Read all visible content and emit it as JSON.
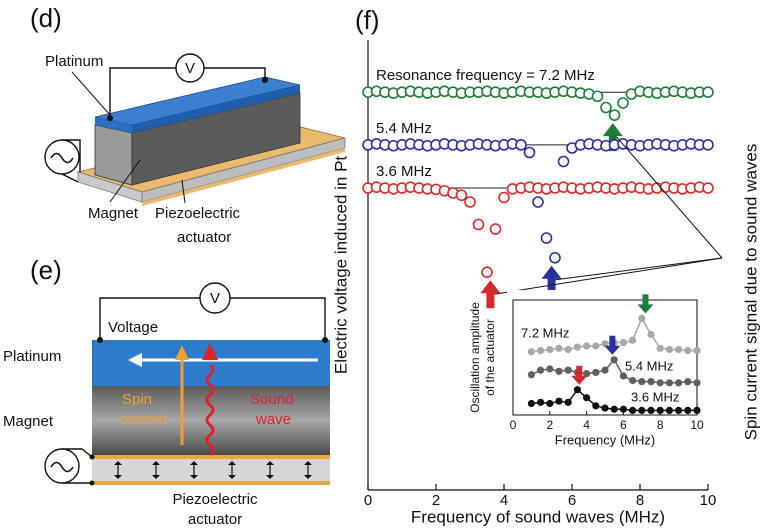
{
  "diagrams": {
    "d": {
      "label": "(d)",
      "voltmeter": "V",
      "platinum": "Platinum",
      "magnet": "Magnet",
      "actuator": [
        "Piezoelectric",
        "actuator"
      ]
    },
    "e": {
      "label": "(e)",
      "voltmeter": "V",
      "voltage": "Voltage",
      "platinum": "Platinum",
      "magnet": "Magnet",
      "spin_current": [
        "Spin",
        "current"
      ],
      "sound_wave": [
        "Sound",
        "wave"
      ],
      "actuator": [
        "Piezoelectric",
        "actuator"
      ]
    }
  },
  "chart_data": [
    {
      "type": "scatter",
      "panel_label": "(f)",
      "xlabel": "Frequency of sound waves (MHz)",
      "ylabel": "Electric voltage induced in Pt",
      "annotation": "Spin current signal due to sound waves",
      "x": [
        0,
        0.25,
        0.5,
        0.75,
        1,
        1.25,
        1.5,
        1.75,
        2,
        2.25,
        2.5,
        2.75,
        3,
        3.25,
        3.5,
        3.75,
        4,
        4.25,
        4.5,
        4.75,
        5,
        5.25,
        5.5,
        5.75,
        6,
        6.25,
        6.5,
        6.75,
        7,
        7.25,
        7.5,
        7.75,
        8,
        8.25,
        8.5,
        8.75,
        9,
        9.25,
        9.5,
        9.75,
        10
      ],
      "series": [
        {
          "name": "Resonance frequency = 7.2 MHz",
          "color": "#1e7b3c",
          "baseline": 8.84,
          "resonance": 7.2,
          "values": [
            8.84,
            8.86,
            8.84,
            8.82,
            8.84,
            8.86,
            8.84,
            8.82,
            8.84,
            8.86,
            8.84,
            8.82,
            8.84,
            8.84,
            8.86,
            8.84,
            8.82,
            8.84,
            8.86,
            8.84,
            8.84,
            8.82,
            8.84,
            8.86,
            8.84,
            8.82,
            8.8,
            8.75,
            8.5,
            8.33,
            8.6,
            8.8,
            8.86,
            8.84,
            8.82,
            8.84,
            8.86,
            8.84,
            8.82,
            8.84,
            8.84
          ]
        },
        {
          "name": "5.4 MHz",
          "color": "#2b2f9e",
          "baseline": 7.67,
          "resonance": 5.4,
          "values": [
            7.67,
            7.69,
            7.67,
            7.65,
            7.67,
            7.69,
            7.67,
            7.65,
            7.67,
            7.69,
            7.67,
            7.65,
            7.67,
            7.69,
            7.67,
            7.65,
            7.67,
            7.69,
            7.67,
            7.5,
            6.4,
            5.6,
            5.16,
            7.3,
            7.6,
            7.67,
            7.69,
            7.67,
            7.65,
            7.67,
            7.69,
            7.67,
            7.65,
            7.67,
            7.69,
            7.67,
            7.65,
            7.67,
            7.69,
            7.67,
            7.67
          ]
        },
        {
          "name": "3.6 MHz",
          "color": "#d42a2a",
          "baseline": 6.71,
          "resonance": 3.6,
          "values": [
            6.71,
            6.73,
            6.71,
            6.69,
            6.71,
            6.73,
            6.71,
            6.69,
            6.68,
            6.65,
            6.6,
            6.55,
            6.4,
            5.9,
            4.84,
            5.8,
            6.5,
            6.69,
            6.71,
            6.73,
            6.71,
            6.69,
            6.71,
            6.73,
            6.71,
            6.69,
            6.71,
            6.73,
            6.71,
            6.69,
            6.71,
            6.73,
            6.71,
            6.69,
            6.71,
            6.73,
            6.71,
            6.69,
            6.71,
            6.73,
            6.71
          ]
        }
      ],
      "xlim": [
        0,
        10
      ],
      "xticks": [
        0,
        2,
        4,
        6,
        8,
        10
      ],
      "ylim": [
        0,
        10
      ]
    },
    {
      "type": "scatter",
      "xlabel": "Frequency (MHz)",
      "ylabel": [
        "Oscillation amplitude",
        "of the actuator"
      ],
      "x": [
        1,
        1.5,
        2,
        2.5,
        3,
        3.5,
        4,
        4.5,
        5,
        5.5,
        6,
        6.5,
        7,
        7.5,
        8,
        8.5,
        9,
        9.5,
        10
      ],
      "series": [
        {
          "name": "7.2 MHz",
          "color": "#a8a8a8",
          "arrow_color": "#1e7b3c",
          "resonance": 7.2,
          "values": [
            5.5,
            5.6,
            5.7,
            5.8,
            5.7,
            5.9,
            6.0,
            6.0,
            6.2,
            6.3,
            6.3,
            6.5,
            8.4,
            7.0,
            5.8,
            5.7,
            5.7,
            5.6,
            5.6
          ]
        },
        {
          "name": "5.4 MHz",
          "color": "#606060",
          "arrow_color": "#2b2f9e",
          "resonance": 5.4,
          "values": [
            3.5,
            3.9,
            4.0,
            3.8,
            3.9,
            3.7,
            3.6,
            3.7,
            3.9,
            4.8,
            3.4,
            3.0,
            2.9,
            2.9,
            2.8,
            2.8,
            2.8,
            2.9,
            2.8
          ]
        },
        {
          "name": "3.6 MHz",
          "color": "#111111",
          "arrow_color": "#d42a2a",
          "resonance": 3.6,
          "values": [
            1.0,
            1.1,
            1.0,
            1.2,
            1.1,
            2.2,
            1.5,
            0.8,
            0.6,
            0.5,
            0.5,
            0.4,
            0.4,
            0.4,
            0.4,
            0.4,
            0.4,
            0.4,
            0.4
          ]
        }
      ],
      "xlim": [
        0,
        10
      ],
      "xticks": [
        0,
        2,
        4,
        6,
        8,
        10
      ],
      "ylim": [
        0,
        10
      ]
    }
  ]
}
